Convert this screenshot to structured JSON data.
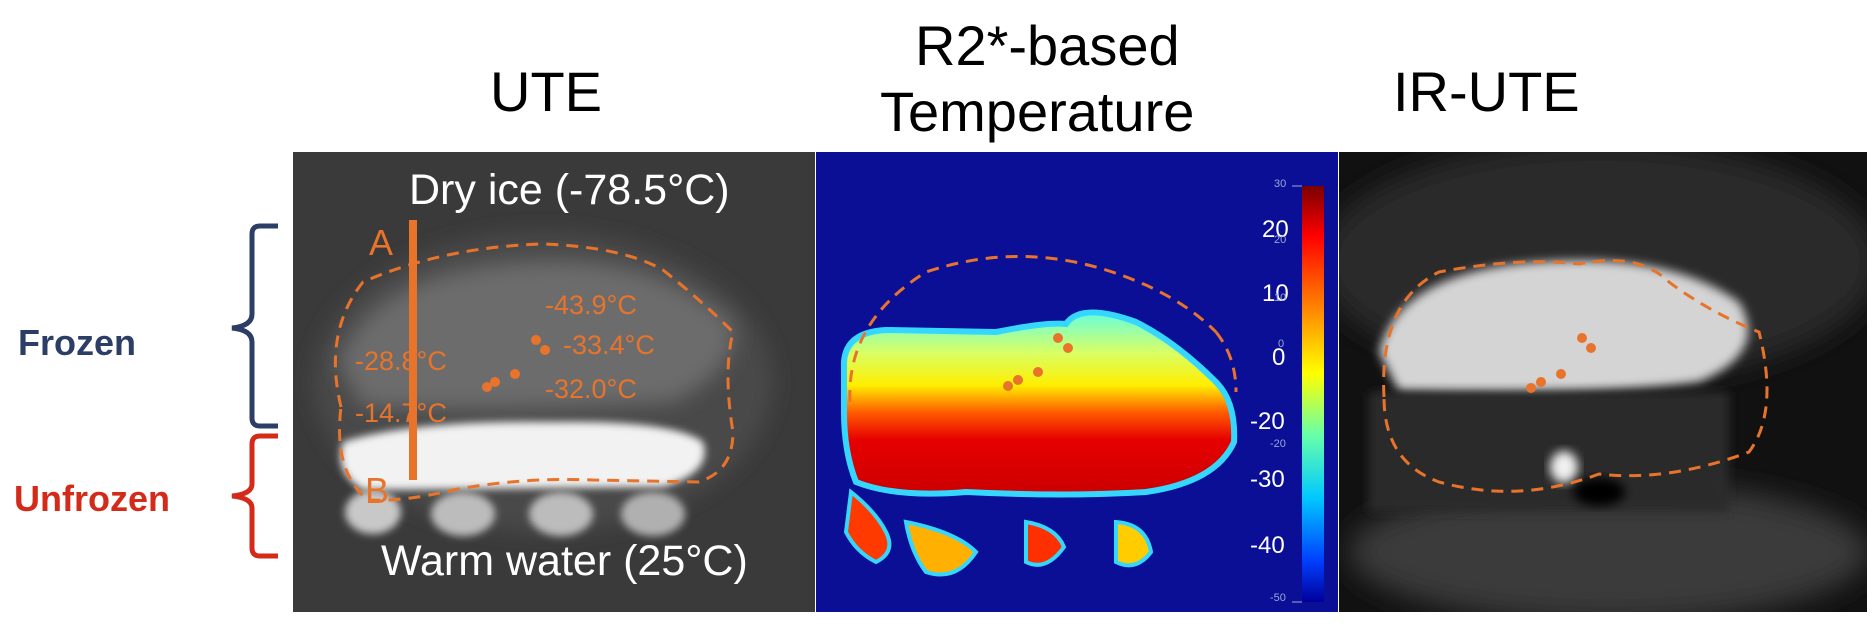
{
  "panels": {
    "ute": {
      "title": "UTE"
    },
    "r2": {
      "title_line1": "R2*-based",
      "title_line2": "Temperature"
    },
    "irute": {
      "title": "IR-UTE"
    }
  },
  "regions": {
    "frozen": {
      "label": "Frozen",
      "color": "#2c3e66"
    },
    "unfrozen": {
      "label": "Unfrozen",
      "color": "#d42a1a"
    }
  },
  "ute_overlay": {
    "top_label": "Dry ice (-78.5°C)",
    "bottom_label": "Warm water (25°C)",
    "line_start": "A",
    "line_end": "B",
    "temperatures": [
      "-43.9°C",
      "-33.4°C",
      "-28.8°C",
      "-32.0°C",
      "-14.7°C"
    ]
  },
  "colorbar": {
    "major_ticks": [
      "20",
      "10",
      "0",
      "-20",
      "-30",
      "-40"
    ],
    "minor_ticks": [
      "30",
      "20",
      "10",
      "0",
      "-20",
      "-50"
    ]
  },
  "colors": {
    "annotation": "#e8742c",
    "jet_background": "#0a0f96"
  }
}
